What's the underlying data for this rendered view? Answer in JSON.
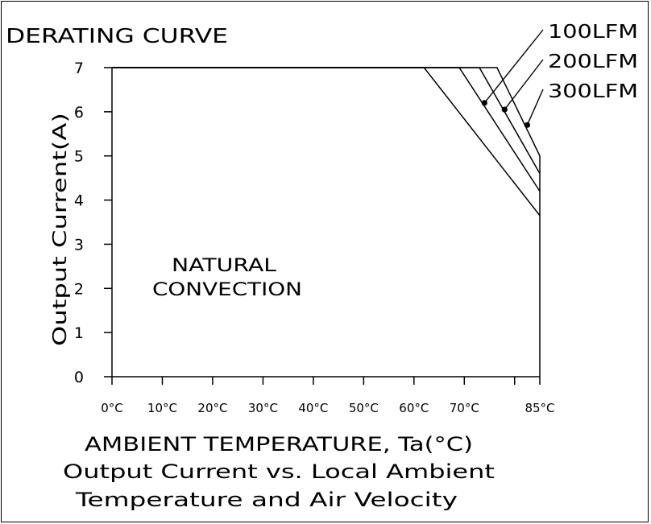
{
  "chart_data": {
    "type": "line",
    "title": "DERATING CURVE",
    "xlabel": "AMBIENT TEMPERATURE, Ta(°C)",
    "ylabel": "Output Current(A)",
    "caption_line1": "Output Current vs. Local Ambient",
    "caption_line2": "Temperature and Air Velocity",
    "region_label_line1": "NATURAL",
    "region_label_line2": "CONVECTION",
    "xlim": [
      0,
      85
    ],
    "ylim": [
      0,
      7
    ],
    "x_ticks": [
      0,
      10,
      20,
      30,
      40,
      50,
      60,
      70,
      80,
      85
    ],
    "x_tick_labels": [
      "0°C",
      "10°C",
      "20°C",
      "30°C",
      "40°C",
      "50°C",
      "60°C",
      "70°C",
      "",
      "85°C"
    ],
    "y_ticks": [
      0,
      1,
      2,
      3,
      4,
      5,
      6,
      7
    ],
    "y_tick_labels": [
      "0",
      "1",
      "2",
      "3",
      "4",
      "5",
      "6",
      "7"
    ],
    "grid": false,
    "series": [
      {
        "x": [
          0,
          62,
          85
        ],
        "y": [
          7,
          7,
          3.65
        ]
      },
      {
        "name": "100LFM",
        "x": [
          0,
          69,
          85
        ],
        "y": [
          7,
          7,
          4.2
        ],
        "marker": [
          74,
          6.2
        ]
      },
      {
        "name": "200LFM",
        "x": [
          0,
          73,
          85
        ],
        "y": [
          7,
          7,
          4.6
        ],
        "marker": [
          78,
          6.05
        ]
      },
      {
        "name": "300LFM",
        "x": [
          0,
          76.5,
          85,
          85
        ],
        "y": [
          7,
          7,
          5.0,
          0
        ],
        "marker": [
          82.5,
          5.7
        ]
      }
    ]
  }
}
